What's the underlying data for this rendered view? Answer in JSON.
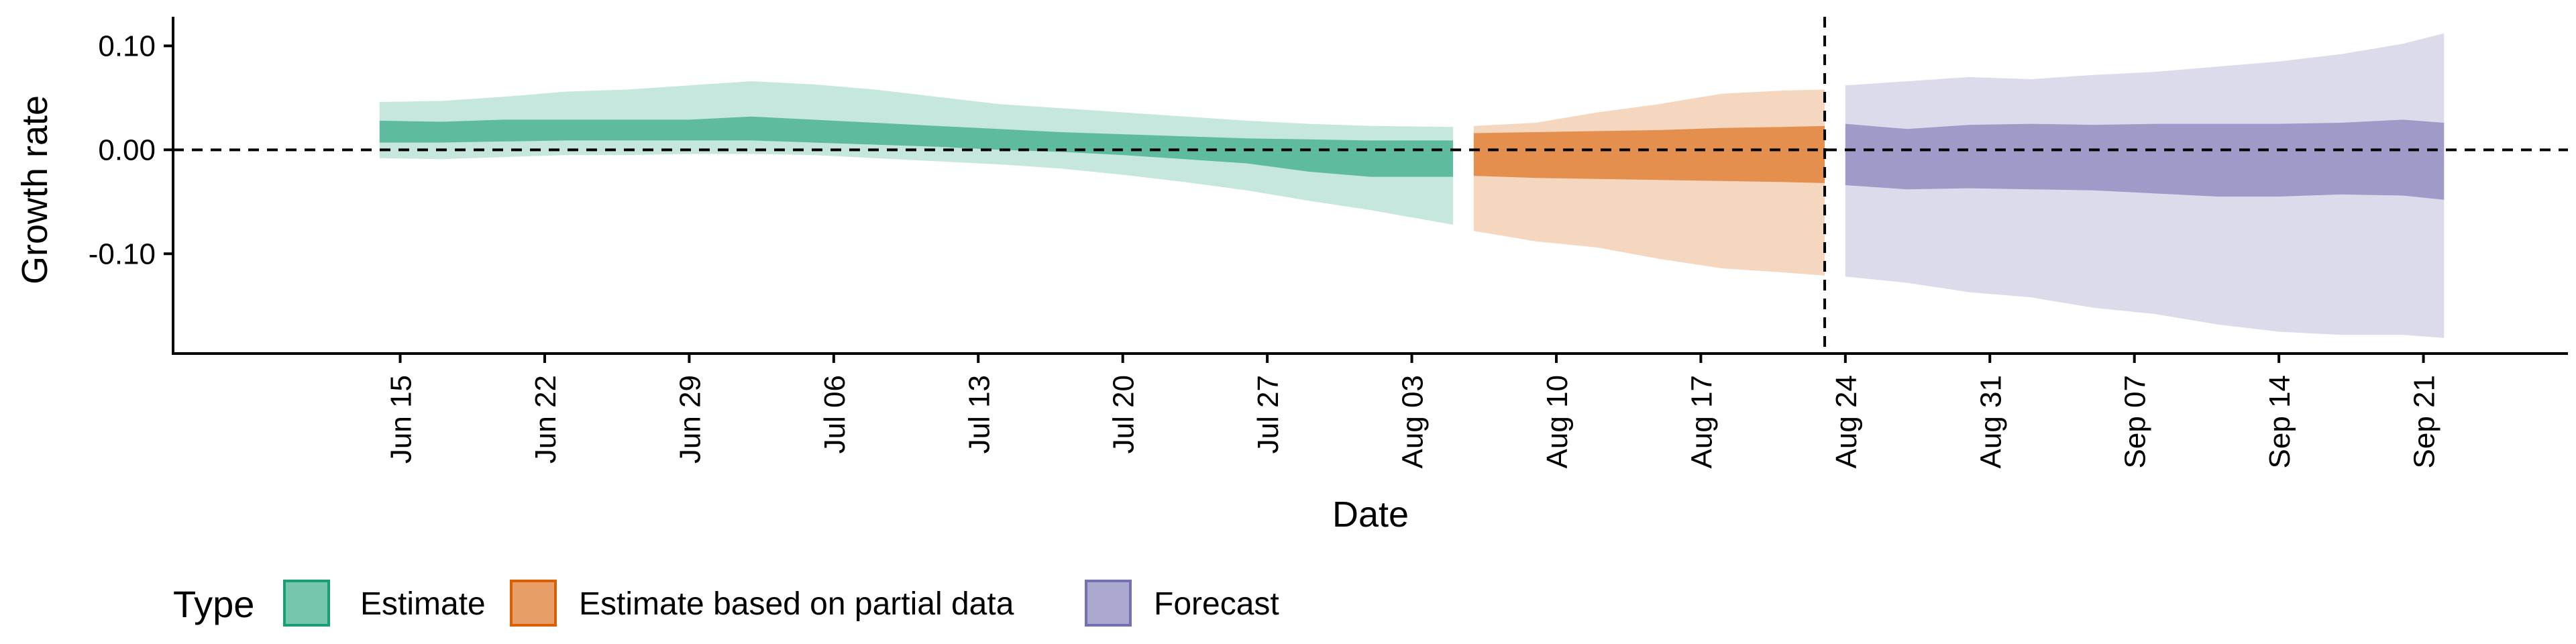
{
  "chart_data": {
    "type": "area",
    "xlabel": "Date",
    "ylabel": "Growth rate",
    "x_axis_type": "date",
    "xlim": [
      "2020-06-04",
      "2020-09-28"
    ],
    "ylim": [
      -0.196,
      0.128
    ],
    "y_ticks": [
      0.1,
      0.0,
      -0.1
    ],
    "y_tick_labels": [
      "0.10",
      "0.00",
      "-0.10"
    ],
    "x_ticks": [
      "2020-06-15",
      "2020-06-22",
      "2020-06-29",
      "2020-07-06",
      "2020-07-13",
      "2020-07-20",
      "2020-07-27",
      "2020-08-03",
      "2020-08-10",
      "2020-08-17",
      "2020-08-24",
      "2020-08-31",
      "2020-09-07",
      "2020-09-14",
      "2020-09-21"
    ],
    "x_tick_labels": [
      "Jun 15",
      "Jun 22",
      "Jun 29",
      "Jul 06",
      "Jul 13",
      "Jul 20",
      "Jul 27",
      "Aug 03",
      "Aug 10",
      "Aug 17",
      "Aug 24",
      "Aug 31",
      "Sep 07",
      "Sep 14",
      "Sep 21"
    ],
    "reference_lines": [
      {
        "axis": "y",
        "value": 0,
        "style": "dashed"
      },
      {
        "axis": "x",
        "value": "2020-08-23",
        "style": "dashed"
      }
    ],
    "grid": false,
    "legend": {
      "title": "Type",
      "position": "bottom"
    },
    "series": [
      {
        "name": "Estimate",
        "fill_color": "#1b9e77",
        "x": [
          "2020-06-14",
          "2020-06-17",
          "2020-06-20",
          "2020-06-23",
          "2020-06-26",
          "2020-06-29",
          "2020-07-02",
          "2020-07-05",
          "2020-07-08",
          "2020-07-11",
          "2020-07-14",
          "2020-07-17",
          "2020-07-20",
          "2020-07-23",
          "2020-07-26",
          "2020-07-29",
          "2020-08-01",
          "2020-08-05"
        ],
        "outer_upper": [
          0.046,
          0.047,
          0.051,
          0.056,
          0.058,
          0.062,
          0.066,
          0.063,
          0.058,
          0.051,
          0.044,
          0.04,
          0.036,
          0.032,
          0.028,
          0.025,
          0.023,
          0.022
        ],
        "inner_upper": [
          0.028,
          0.027,
          0.029,
          0.029,
          0.029,
          0.029,
          0.032,
          0.029,
          0.026,
          0.023,
          0.02,
          0.017,
          0.015,
          0.013,
          0.011,
          0.01,
          0.009,
          0.009
        ],
        "inner_lower": [
          0.007,
          0.007,
          0.008,
          0.009,
          0.009,
          0.009,
          0.009,
          0.007,
          0.005,
          0.003,
          0.0,
          -0.002,
          -0.005,
          -0.009,
          -0.013,
          -0.021,
          -0.026,
          -0.026
        ],
        "outer_lower": [
          -0.008,
          -0.009,
          -0.007,
          -0.005,
          -0.005,
          -0.004,
          -0.004,
          -0.005,
          -0.008,
          -0.011,
          -0.014,
          -0.018,
          -0.024,
          -0.031,
          -0.039,
          -0.049,
          -0.058,
          -0.072
        ]
      },
      {
        "name": "Estimate based on partial data",
        "fill_color": "#d95f02",
        "x": [
          "2020-08-06",
          "2020-08-09",
          "2020-08-12",
          "2020-08-15",
          "2020-08-18",
          "2020-08-21",
          "2020-08-23"
        ],
        "outer_upper": [
          0.023,
          0.026,
          0.036,
          0.044,
          0.054,
          0.057,
          0.058
        ],
        "inner_upper": [
          0.016,
          0.017,
          0.018,
          0.019,
          0.021,
          0.022,
          0.023
        ],
        "inner_lower": [
          -0.025,
          -0.027,
          -0.028,
          -0.029,
          -0.03,
          -0.031,
          -0.032
        ],
        "outer_lower": [
          -0.078,
          -0.088,
          -0.094,
          -0.105,
          -0.114,
          -0.118,
          -0.121
        ]
      },
      {
        "name": "Forecast",
        "fill_color": "#7570b3",
        "x": [
          "2020-08-24",
          "2020-08-27",
          "2020-08-30",
          "2020-09-02",
          "2020-09-05",
          "2020-09-08",
          "2020-09-11",
          "2020-09-14",
          "2020-09-17",
          "2020-09-20",
          "2020-09-22"
        ],
        "outer_upper": [
          0.062,
          0.066,
          0.07,
          0.068,
          0.072,
          0.075,
          0.08,
          0.085,
          0.092,
          0.102,
          0.112
        ],
        "inner_upper": [
          0.025,
          0.02,
          0.024,
          0.025,
          0.024,
          0.025,
          0.025,
          0.025,
          0.026,
          0.029,
          0.026
        ],
        "inner_lower": [
          -0.034,
          -0.038,
          -0.037,
          -0.038,
          -0.039,
          -0.042,
          -0.045,
          -0.045,
          -0.043,
          -0.044,
          -0.048
        ],
        "outer_lower": [
          -0.122,
          -0.128,
          -0.137,
          -0.142,
          -0.152,
          -0.158,
          -0.168,
          -0.175,
          -0.178,
          -0.178,
          -0.181
        ]
      }
    ]
  }
}
